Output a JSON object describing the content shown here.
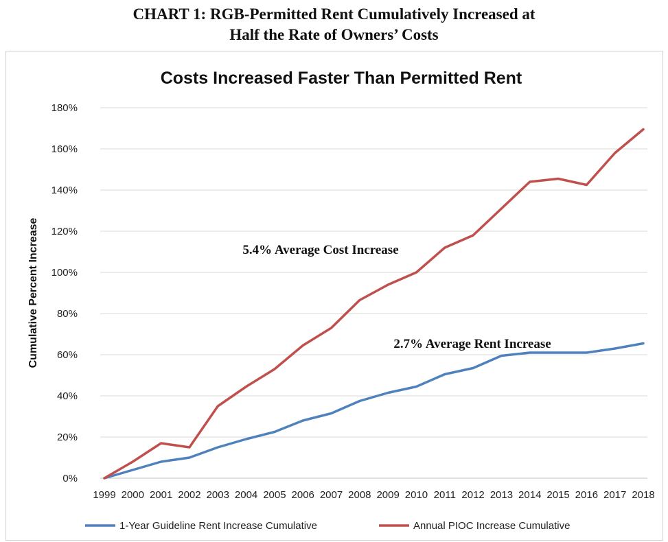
{
  "header": {
    "line1": "CHART 1: RGB-Permitted Rent Cumulatively Increased at",
    "line2": "Half the Rate of Owners’ Costs"
  },
  "chart_data": {
    "type": "line",
    "title": "Costs Increased Faster Than Permitted Rent",
    "xlabel": "",
    "ylabel": "Cumulative Percent Increase",
    "ylim": [
      0,
      180
    ],
    "y_ticks": [
      "0%",
      "20%",
      "40%",
      "60%",
      "80%",
      "100%",
      "120%",
      "140%",
      "160%",
      "180%"
    ],
    "categories": [
      "1999",
      "2000",
      "2001",
      "2002",
      "2003",
      "2004",
      "2005",
      "2006",
      "2007",
      "2008",
      "2009",
      "2010",
      "2011",
      "2012",
      "2013",
      "2014",
      "2015",
      "2016",
      "2017",
      "2018"
    ],
    "series": [
      {
        "name": "1-Year Guideline Rent Increase Cumulative",
        "color": "#4f81bd",
        "values": [
          0,
          4,
          8,
          10,
          15,
          19,
          22.5,
          28,
          31.5,
          37.5,
          41.5,
          44.5,
          50.5,
          53.5,
          59.5,
          61,
          61,
          61,
          63,
          65.5
        ]
      },
      {
        "name": "Annual PIOC Increase Cumulative",
        "color": "#c0504d",
        "values": [
          0,
          8,
          17,
          15,
          35,
          44.5,
          53,
          64.5,
          73,
          86.5,
          94,
          100,
          112,
          118,
          131,
          144,
          145.5,
          142.5,
          158,
          169.5
        ]
      }
    ],
    "annotations": [
      {
        "text": "5.4% Average Cost Increase"
      },
      {
        "text": "2.7% Average Rent Increase"
      }
    ],
    "grid": "horizontal",
    "legend_position": "bottom"
  }
}
